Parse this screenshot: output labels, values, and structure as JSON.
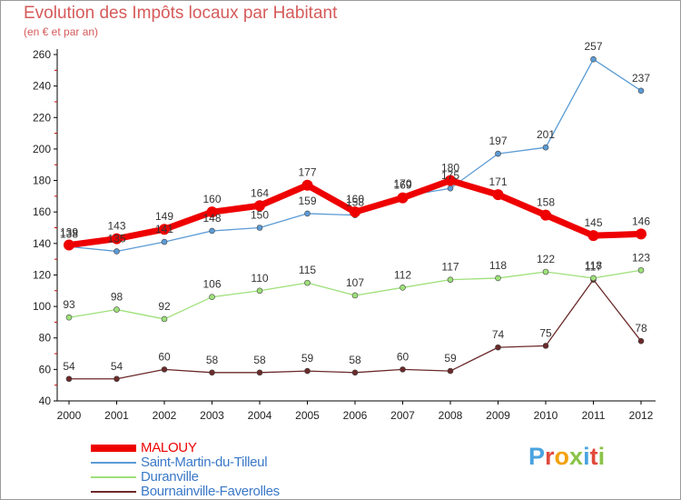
{
  "header": {
    "title": "Evolution des Impôts locaux par Habitant",
    "subtitle": "(en € et par an)"
  },
  "logo": {
    "letters": [
      "P",
      "r",
      "o",
      "x",
      "i",
      "t",
      "i"
    ],
    "colors": [
      "#4aa3df",
      "#e04a3c",
      "#f2a20b",
      "#8bc34a",
      "#4aa3df",
      "#e04a3c",
      "#8bc34a"
    ]
  },
  "chart_data": {
    "type": "line",
    "title": "Evolution des Impôts locaux par Habitant",
    "subtitle": "(en € et par an)",
    "xlabel": "",
    "ylabel": "",
    "x": [
      "2000",
      "2001",
      "2002",
      "2003",
      "2004",
      "2005",
      "2006",
      "2007",
      "2008",
      "2009",
      "2010",
      "2011",
      "2012"
    ],
    "ylim": [
      40,
      260
    ],
    "yticks": [
      40,
      60,
      80,
      100,
      120,
      140,
      160,
      180,
      200,
      220,
      240,
      260
    ],
    "grid": false,
    "legend_position": "bottom-left",
    "series": [
      {
        "name": "MALOUY",
        "color": "#ee0000",
        "values": [
          139,
          143,
          149,
          160,
          164,
          177,
          160,
          169,
          180,
          171,
          158,
          145,
          146
        ]
      },
      {
        "name": "Saint-Martin-du-Tilleul",
        "color": "#5b9bd5",
        "values": [
          138,
          135,
          141,
          148,
          150,
          159,
          158,
          170,
          175,
          197,
          201,
          257,
          237
        ]
      },
      {
        "name": "Duranville",
        "color": "#9ee07a",
        "values": [
          93,
          98,
          92,
          106,
          110,
          115,
          107,
          112,
          117,
          118,
          122,
          118,
          123
        ]
      },
      {
        "name": "Bournainville-Faverolles",
        "color": "#6b2a2a",
        "values": [
          54,
          54,
          60,
          58,
          58,
          59,
          58,
          60,
          59,
          74,
          75,
          117,
          78
        ]
      }
    ]
  }
}
